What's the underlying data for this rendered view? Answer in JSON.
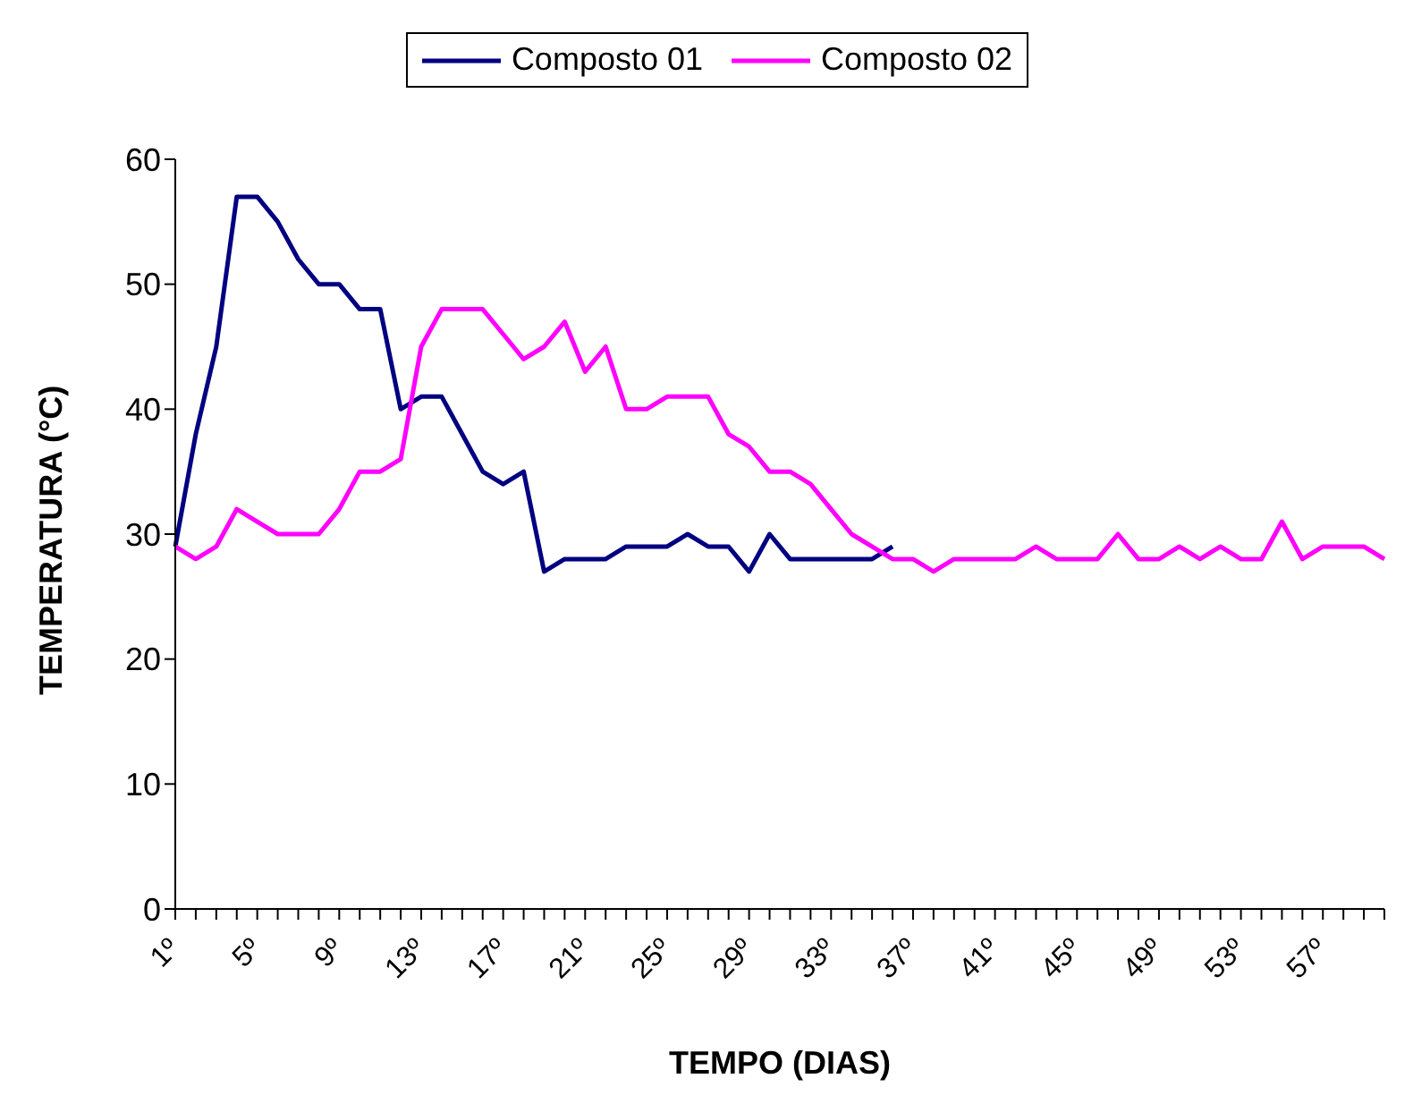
{
  "chart_data": {
    "type": "line",
    "xlabel": "TEMPO (DIAS)",
    "ylabel": "TEMPERATURA (°C)",
    "categories": [
      "1º",
      null,
      null,
      null,
      "5º",
      null,
      null,
      null,
      "9º",
      null,
      null,
      null,
      "13º",
      null,
      null,
      null,
      "17º",
      null,
      null,
      null,
      "21º",
      null,
      null,
      null,
      "25º",
      null,
      null,
      null,
      "29º",
      null,
      null,
      null,
      "33º",
      null,
      null,
      null,
      "37º",
      null,
      null,
      null,
      "41º",
      null,
      null,
      null,
      "45º",
      null,
      null,
      null,
      "49º",
      null,
      null,
      null,
      "53º",
      null,
      null,
      null,
      "57º",
      null,
      null,
      null
    ],
    "series": [
      {
        "name": "Composto 01",
        "color": "#000080",
        "values": [
          29,
          38,
          45,
          57,
          57,
          55,
          52,
          50,
          50,
          48,
          48,
          40,
          41,
          41,
          38,
          35,
          34,
          35,
          27,
          28,
          28,
          28,
          29,
          29,
          29,
          30,
          29,
          29,
          27,
          30,
          28,
          28,
          28,
          28,
          28,
          29,
          null,
          null,
          null,
          null,
          null,
          null,
          null,
          null,
          null,
          null,
          null,
          null,
          null,
          null,
          null,
          null,
          null,
          null,
          null,
          null,
          null,
          null,
          null,
          null
        ]
      },
      {
        "name": "Composto 02",
        "color": "#ff00ff",
        "values": [
          29,
          28,
          29,
          32,
          31,
          30,
          30,
          30,
          32,
          35,
          35,
          36,
          45,
          48,
          48,
          48,
          46,
          44,
          45,
          47,
          43,
          45,
          40,
          40,
          41,
          41,
          41,
          38,
          37,
          35,
          35,
          34,
          32,
          30,
          29,
          28,
          28,
          27,
          28,
          28,
          28,
          28,
          29,
          28,
          28,
          28,
          30,
          28,
          28,
          29,
          28,
          29,
          28,
          28,
          31,
          28,
          29,
          29,
          29,
          28
        ]
      }
    ],
    "ylim": [
      0,
      60
    ],
    "yticks": [
      0,
      10,
      20,
      30,
      40,
      50,
      60
    ],
    "grid": false,
    "legend": "top",
    "marker": "none",
    "line_style": "solid"
  }
}
